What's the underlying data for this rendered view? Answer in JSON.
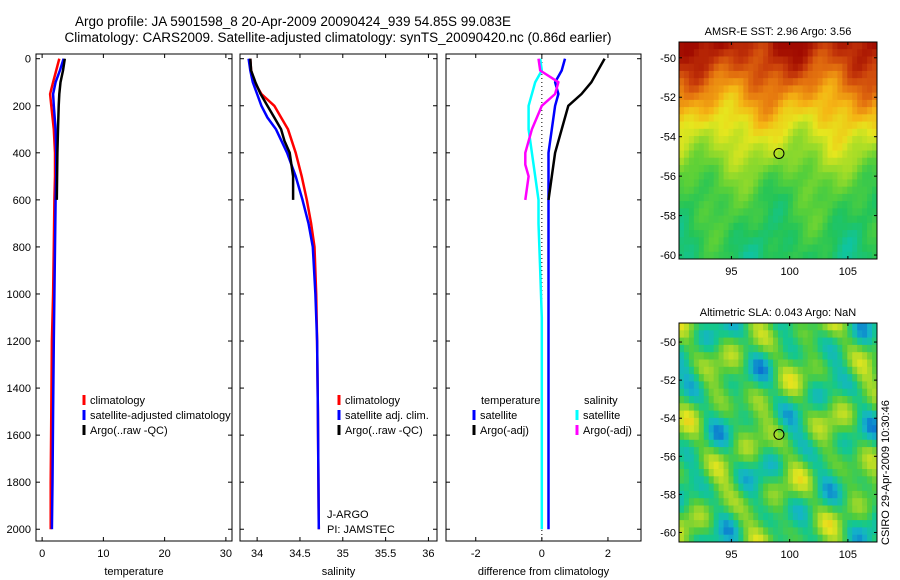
{
  "header": {
    "line1": "Argo profile: JA 5901598_8 20-Apr-2009 20090424_939 54.85S 99.083E",
    "line2": "Climatology: CARS2009. Satellite-adjusted climatology: synTS_20090420.nc (0.86d earlier)"
  },
  "side_label": "CSIRO 29-Apr-2009 10:30:46",
  "colors": {
    "climatology": "#ff0000",
    "satellite": "#0000ff",
    "argo": "#000000",
    "salinity_satellite": "#00ffff",
    "salinity_argo": "#ff00ff"
  },
  "chart_data": [
    {
      "id": "temperature",
      "type": "line",
      "xlabel": "temperature",
      "ylabel": "",
      "xlim": [
        -1,
        31
      ],
      "ylim": [
        2050,
        -20
      ],
      "xticks": [
        0,
        10,
        20,
        30
      ],
      "yticks": [
        0,
        200,
        400,
        600,
        800,
        1000,
        1200,
        1400,
        1600,
        1800,
        2000
      ],
      "series": [
        {
          "name": "climatology",
          "color": "#ff0000",
          "x": [
            2.8,
            2.3,
            1.8,
            1.3,
            1.5,
            1.9,
            2.1,
            2.1,
            2.0,
            1.9,
            1.8,
            1.6,
            1.5,
            1.4,
            1.4
          ],
          "y": [
            0,
            50,
            100,
            150,
            200,
            300,
            400,
            500,
            600,
            800,
            1000,
            1200,
            1500,
            1800,
            2000
          ]
        },
        {
          "name": "satellite-adjusted climatology",
          "color": "#0000ff",
          "x": [
            3.5,
            2.9,
            2.2,
            1.8,
            1.9,
            2.2,
            2.3,
            2.3,
            2.2,
            2.1,
            2.0,
            1.9,
            1.8,
            1.7,
            1.6
          ],
          "y": [
            0,
            50,
            100,
            150,
            200,
            300,
            400,
            500,
            600,
            800,
            1000,
            1200,
            1500,
            1800,
            2000
          ]
        },
        {
          "name": "Argo(..raw -QC)",
          "color": "#000000",
          "x": [
            3.7,
            3.4,
            3.0,
            2.8,
            2.7,
            2.6,
            2.5,
            2.4
          ],
          "y": [
            0,
            50,
            100,
            150,
            200,
            300,
            400,
            600
          ]
        }
      ],
      "legend": {
        "placement": "lower-right",
        "items": [
          "climatology",
          "satellite-adjusted climatology",
          "Argo(..raw -QC)"
        ]
      }
    },
    {
      "id": "salinity",
      "type": "line",
      "xlabel": "salinity",
      "ylabel": "",
      "xlim": [
        33.8,
        36.1
      ],
      "ylim": [
        2050,
        -20
      ],
      "xticks": [
        34,
        34.5,
        35,
        35.5,
        36
      ],
      "yticks": [
        0,
        200,
        400,
        600,
        800,
        1000,
        1200,
        1400,
        1600,
        1800,
        2000
      ],
      "series": [
        {
          "name": "climatology",
          "color": "#ff0000",
          "x": [
            33.92,
            33.93,
            33.97,
            34.05,
            34.2,
            34.28,
            34.36,
            34.45,
            34.52,
            34.58,
            34.63,
            34.67,
            34.69,
            34.7,
            34.71,
            34.72
          ],
          "y": [
            0,
            50,
            100,
            150,
            200,
            250,
            300,
            400,
            500,
            600,
            700,
            800,
            1000,
            1200,
            1500,
            2000
          ]
        },
        {
          "name": "satellite adj. clim.",
          "color": "#0000ff",
          "x": [
            33.9,
            33.92,
            33.95,
            34.0,
            34.05,
            34.12,
            34.22,
            34.35,
            34.45,
            34.53,
            34.6,
            34.65,
            34.68,
            34.7,
            34.71,
            34.72
          ],
          "y": [
            0,
            50,
            100,
            150,
            200,
            250,
            300,
            400,
            500,
            600,
            700,
            800,
            1000,
            1200,
            1500,
            2000
          ]
        },
        {
          "name": "Argo(..raw -QC)",
          "color": "#000000",
          "x": [
            33.92,
            33.93,
            33.98,
            34.04,
            34.12,
            34.2,
            34.28,
            34.32,
            34.38,
            34.42,
            34.42
          ],
          "y": [
            0,
            50,
            100,
            150,
            200,
            250,
            300,
            350,
            400,
            500,
            600
          ]
        }
      ],
      "annotations": [
        "J-ARGO",
        "PI: JAMSTEC"
      ],
      "legend": {
        "placement": "lower-right",
        "items": [
          "climatology",
          "satellite adj. clim.",
          "Argo(..raw -QC)"
        ]
      }
    },
    {
      "id": "difference",
      "type": "line",
      "xlabel": "difference from climatology",
      "ylabel": "",
      "xlim": [
        -2.9,
        3.0
      ],
      "ylim": [
        2050,
        -20
      ],
      "xticks": [
        -2,
        0,
        2
      ],
      "yticks": [
        0,
        200,
        400,
        600,
        800,
        1000,
        1200,
        1400,
        1600,
        1800,
        2000
      ],
      "series": [
        {
          "name": "temperature satellite",
          "color": "#0000ff",
          "x": [
            0.7,
            0.6,
            0.4,
            0.5,
            0.4,
            0.3,
            0.2,
            0.2,
            0.2,
            0.2,
            0.2,
            0.2,
            0.2
          ],
          "y": [
            0,
            50,
            100,
            150,
            200,
            300,
            400,
            600,
            800,
            1000,
            1200,
            1500,
            2000
          ]
        },
        {
          "name": "temperature Argo(-adj)",
          "color": "#000000",
          "x": [
            1.9,
            1.5,
            1.2,
            0.8,
            0.6,
            0.4,
            0.3,
            0.2
          ],
          "y": [
            0,
            100,
            150,
            200,
            300,
            400,
            500,
            600
          ]
        },
        {
          "name": "salinity satellite",
          "color": "#00ffff",
          "x": [
            -0.05,
            0.0,
            -0.2,
            -0.4,
            -0.4,
            -0.3,
            -0.2,
            -0.1,
            -0.1,
            -0.05,
            0.0,
            0.0,
            0.0
          ],
          "y": [
            0,
            50,
            100,
            200,
            300,
            400,
            500,
            600,
            700,
            900,
            1100,
            1500,
            2000
          ]
        },
        {
          "name": "salinity Argo(-adj)",
          "color": "#ff00ff",
          "x": [
            -0.1,
            -0.05,
            0.5,
            0.4,
            0.0,
            -0.3,
            -0.5,
            -0.5,
            -0.4,
            -0.5
          ],
          "y": [
            0,
            50,
            100,
            150,
            200,
            300,
            400,
            450,
            500,
            600
          ]
        }
      ],
      "legend": {
        "placement": "lower-center",
        "group_titles": [
          "temperature",
          "salinity"
        ],
        "items": [
          "satellite",
          "Argo(-adj)",
          "satellite",
          "Argo(-adj)"
        ]
      }
    },
    {
      "id": "sst_map",
      "type": "heatmap",
      "title": "AMSR-E SST: 2.96 Argo: 3.56",
      "xlim": [
        90.5,
        107.5
      ],
      "ylim": [
        -60.2,
        -49.2
      ],
      "xticks": [
        95,
        100,
        105
      ],
      "yticks": [
        -50,
        -52,
        -54,
        -56,
        -58,
        -60
      ],
      "marker": {
        "lon": 99.083,
        "lat": -54.85
      },
      "colormap": [
        "#0fc4a0",
        "#22c45a",
        "#5ad038",
        "#a0dc28",
        "#e6e61e",
        "#f5b414",
        "#e6780f",
        "#c83c0a",
        "#a00a00"
      ],
      "grid_lat_north_to_south": [
        -49.5,
        -50.5,
        -51.5,
        -52.5,
        -53.5,
        -54.5,
        -55.5,
        -56.5,
        -57.5,
        -58.5,
        -59.5
      ],
      "row_mean_values": [
        0.95,
        0.85,
        0.72,
        0.6,
        0.48,
        0.38,
        0.27,
        0.2,
        0.17,
        0.13,
        0.1
      ]
    },
    {
      "id": "sla_map",
      "type": "heatmap",
      "title": "Altimetric SLA: 0.043 Argo: NaN",
      "xlim": [
        90.5,
        107.5
      ],
      "ylim": [
        -60.5,
        -49.0
      ],
      "xticks": [
        95,
        100,
        105
      ],
      "yticks": [
        -50,
        -52,
        -54,
        -56,
        -58,
        -60
      ],
      "marker": {
        "lon": 99.083,
        "lat": -54.85
      },
      "colormap": [
        "#0a6ed2",
        "#14b4c8",
        "#14c88c",
        "#50cc3c",
        "#a0d82a",
        "#e6e61e",
        "#f0a014"
      ]
    }
  ]
}
